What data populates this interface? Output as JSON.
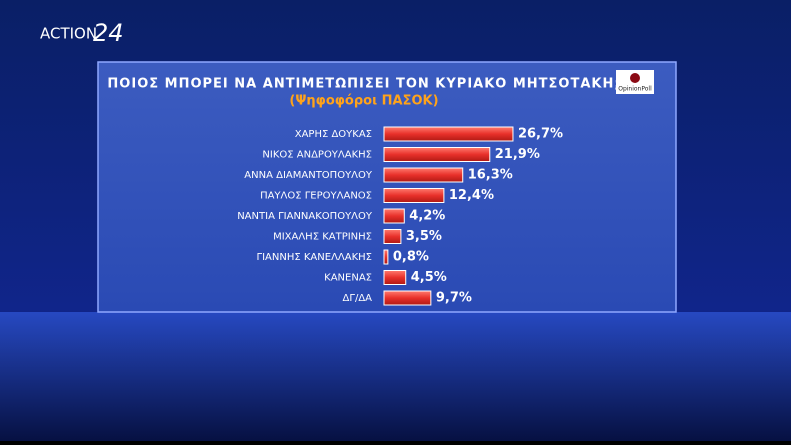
{
  "channel": {
    "name": "ACTION",
    "number": "24"
  },
  "pollster": "OpinionPoll",
  "chart_data": {
    "type": "barh",
    "title": "ΠΟΙΟΣ ΜΠΟΡΕΙ ΝΑ ΑΝΤΙΜΕΤΩΠΙΣΕΙ ΤΟΝ ΚΥΡΙΑΚΟ ΜΗΤΣΟΤΑΚΗ;",
    "subtitle": "(Ψηφοφόροι ΠΑΣΟΚ)",
    "categories": [
      "ΧΑΡΗΣ ΔΟΥΚΑΣ",
      "ΝΙΚΟΣ ΑΝΔΡΟΥΛΑΚΗΣ",
      "ΑΝΝΑ ΔΙΑΜΑΝΤΟΠΟΥΛΟΥ",
      "ΠΑΥΛΟΣ ΓΕΡΟΥΛΑΝΟΣ",
      "ΝΑΝΤΙΑ ΓΙΑΝΝΑΚΟΠΟΥΛΟΥ",
      "ΜΙΧΑΛΗΣ ΚΑΤΡΙΝΗΣ",
      "ΓΙΑΝΝΗΣ ΚΑΝΕΛΛΑΚΗΣ",
      "ΚΑΝΕΝΑΣ",
      "ΔΓ/ΔΑ"
    ],
    "values": [
      26.7,
      21.9,
      16.3,
      12.4,
      4.2,
      3.5,
      0.8,
      4.5,
      9.7
    ],
    "value_labels": [
      "26,7%",
      "21,9%",
      "16,3%",
      "12,4%",
      "4,2%",
      "3,5%",
      "0,8%",
      "4,5%",
      "9,7%"
    ],
    "color": "#e8302a"
  }
}
